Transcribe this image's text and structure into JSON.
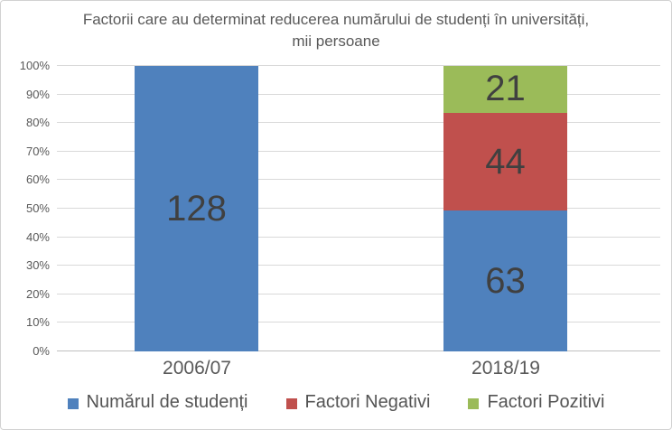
{
  "title": {
    "line1": "Factorii care au determinat reducerea numărului de studenți în universități,",
    "line2": "mii persoane"
  },
  "chart_data": {
    "type": "bar",
    "subtype": "stacked-100-percent",
    "title": "Factorii care au determinat reducerea numărului de studenți în universități, mii persoane",
    "categories": [
      "2006/07",
      "2018/19"
    ],
    "series": [
      {
        "name": "Numărul de studenți",
        "color": "#4F81BD",
        "values": [
          128,
          63
        ]
      },
      {
        "name": "Factori Negativi",
        "color": "#C0504D",
        "values": [
          null,
          44
        ]
      },
      {
        "name": "Factori Pozitivi",
        "color": "#9BBB59",
        "values": [
          null,
          21
        ]
      }
    ],
    "y_axis": {
      "ticks": [
        "0%",
        "10%",
        "20%",
        "30%",
        "40%",
        "50%",
        "60%",
        "70%",
        "80%",
        "90%",
        "100%"
      ],
      "min": 0,
      "max": 100,
      "unit": "%"
    },
    "grid": true,
    "legend_position": "bottom",
    "data_label_color": "#404040",
    "axis_text_color": "#595959"
  }
}
